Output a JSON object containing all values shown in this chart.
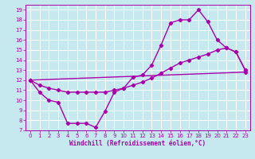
{
  "xlabel": "Windchill (Refroidissement éolien,°C)",
  "xlim": [
    -0.5,
    23.5
  ],
  "ylim": [
    7,
    19.5
  ],
  "xticks": [
    0,
    1,
    2,
    3,
    4,
    5,
    6,
    7,
    8,
    9,
    10,
    11,
    12,
    13,
    14,
    15,
    16,
    17,
    18,
    19,
    20,
    21,
    22,
    23
  ],
  "yticks": [
    7,
    8,
    9,
    10,
    11,
    12,
    13,
    14,
    15,
    16,
    17,
    18,
    19
  ],
  "bg_color": "#c6e8ef",
  "line_color": "#aa00aa",
  "grid_color": "#ffffff",
  "curve1_x": [
    0,
    1,
    2,
    3,
    4,
    5,
    6,
    7,
    8,
    9,
    10,
    11,
    12,
    13,
    14,
    15,
    16,
    17,
    18,
    19,
    20,
    21,
    22,
    23
  ],
  "curve1_y": [
    12,
    10.8,
    10.0,
    9.8,
    7.7,
    7.7,
    7.7,
    7.3,
    8.9,
    10.8,
    11.2,
    12.3,
    12.5,
    13.5,
    15.5,
    17.7,
    18.0,
    18.0,
    19.0,
    17.8,
    16.0,
    15.2,
    14.8,
    13.0
  ],
  "curve2_x": [
    0,
    1,
    2,
    3,
    4,
    5,
    6,
    7,
    8,
    9,
    10,
    11,
    12,
    13,
    14,
    15,
    16,
    17,
    18,
    19,
    20,
    21,
    22,
    23
  ],
  "curve2_y": [
    12,
    11.5,
    11.2,
    11.0,
    10.8,
    10.8,
    10.8,
    10.8,
    10.8,
    11.0,
    11.2,
    11.5,
    11.8,
    12.2,
    12.7,
    13.2,
    13.7,
    14.0,
    14.3,
    14.6,
    15.0,
    15.2,
    14.8,
    13.0
  ],
  "curve3_x": [
    0,
    23
  ],
  "curve3_y": [
    12,
    12.8
  ],
  "marker": "D",
  "markersize": 2.2,
  "linewidth": 1.0,
  "tick_fontsize": 5,
  "xlabel_fontsize": 5.5
}
